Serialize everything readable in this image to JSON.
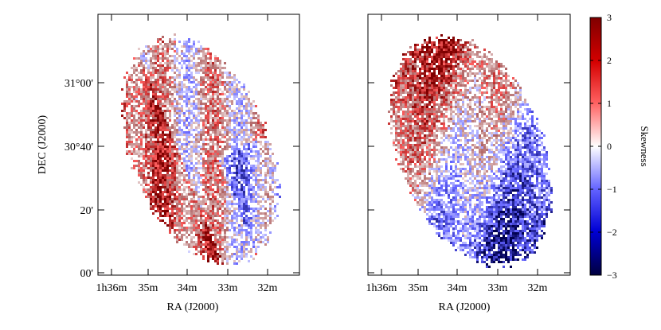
{
  "chart_data": [
    {
      "type": "heatmap",
      "title": "",
      "xlabel": "RA (J2000)",
      "ylabel": "DEC (J2000)",
      "x_ticks": [
        "1h36m",
        "35m",
        "34m",
        "33m",
        "32m"
      ],
      "y_ticks": [
        "00'",
        "20'",
        "30°40'",
        "31°00'"
      ],
      "description_values": {
        "dominant_sign": "mixed",
        "note": "positive (red) skewness on the left/east side and spiral arms, negative (blue) along inner arms"
      }
    },
    {
      "type": "heatmap",
      "title": "",
      "xlabel": "RA (J2000)",
      "ylabel": "",
      "x_ticks": [
        "1h36m",
        "35m",
        "34m",
        "33m",
        "32m"
      ],
      "y_ticks": [],
      "description_values": {
        "dominant_sign": "mixed",
        "note": "strong positive (red) skewness in north-east, strong negative (blue) in south-west"
      }
    }
  ],
  "colorbar": {
    "label": "Skewness",
    "range": [
      -3,
      3
    ],
    "ticks": [
      "3",
      "2",
      "1",
      "0",
      "−1",
      "−2",
      "−3"
    ],
    "tick_values": [
      3,
      2,
      1,
      0,
      -1,
      -2,
      -3
    ],
    "colors": {
      "max": "#7f0000",
      "high": "#e8110f",
      "mid": "#ffffff",
      "low": "#1f1fe8",
      "min": "#00004f"
    }
  }
}
